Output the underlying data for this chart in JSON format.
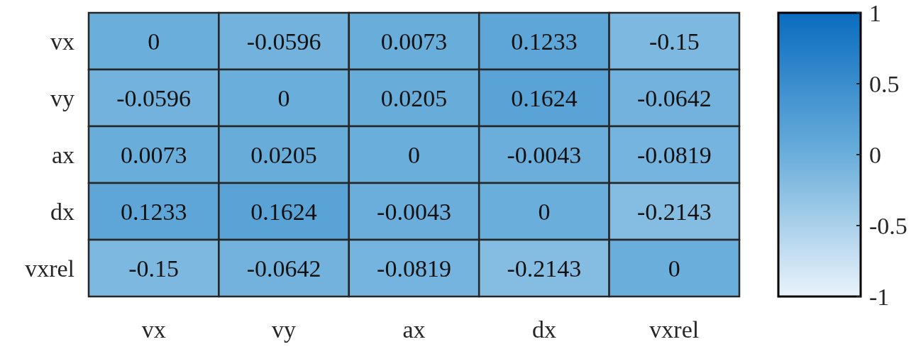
{
  "chart_data": {
    "type": "heatmap",
    "categories": [
      "vx",
      "vy",
      "ax",
      "dx",
      "vxrel"
    ],
    "y_categories": [
      "vx",
      "vy",
      "ax",
      "dx",
      "vxrel"
    ],
    "cells": [
      [
        0,
        -0.0596,
        0.0073,
        0.1233,
        -0.15
      ],
      [
        -0.0596,
        0,
        0.0205,
        0.1624,
        -0.0642
      ],
      [
        0.0073,
        0.0205,
        0,
        -0.0043,
        -0.0819
      ],
      [
        0.1233,
        0.1624,
        -0.0043,
        0,
        -0.2143
      ],
      [
        -0.15,
        -0.0642,
        -0.0819,
        -0.2143,
        0
      ]
    ],
    "data_labels": true,
    "clim": [
      -1,
      1
    ],
    "cticks": [
      1,
      0.5,
      0,
      -0.5,
      -1
    ]
  }
}
